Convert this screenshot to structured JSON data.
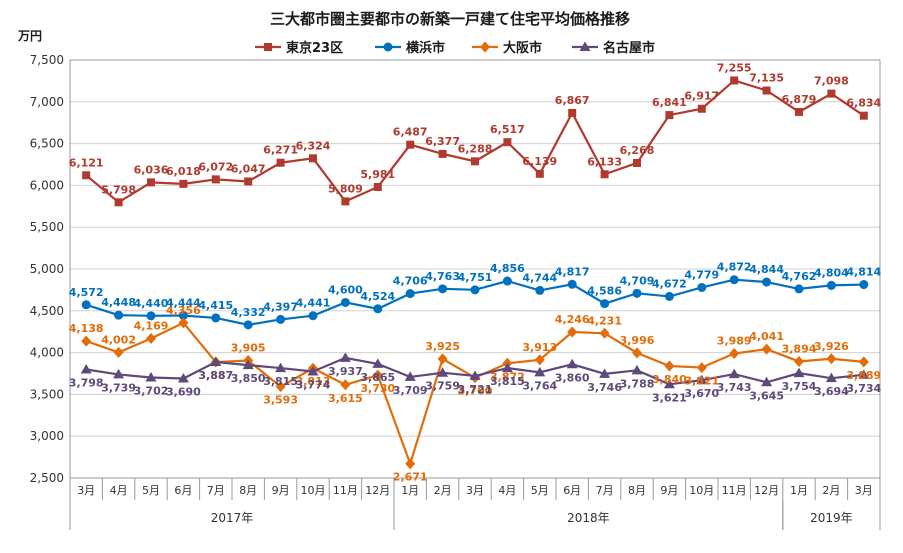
{
  "chart_data": {
    "type": "line",
    "title": "三大都市圏主要都市の新築一戸建て住宅平均価格推移",
    "ylabel": "万円",
    "ylim": [
      2500,
      7500
    ],
    "yticks": [
      "2,500",
      "3,000",
      "3,500",
      "4,000",
      "4,500",
      "5,000",
      "5,500",
      "6,000",
      "6,500",
      "7,000",
      "7,500"
    ],
    "ytick_values": [
      2500,
      3000,
      3500,
      4000,
      4500,
      5000,
      5500,
      6000,
      6500,
      7000,
      7500
    ],
    "categories": [
      "3月",
      "4月",
      "5月",
      "6月",
      "7月",
      "8月",
      "9月",
      "10月",
      "11月",
      "12月",
      "1月",
      "2月",
      "3月",
      "4月",
      "5月",
      "6月",
      "7月",
      "8月",
      "9月",
      "10月",
      "11月",
      "12月",
      "1月",
      "2月",
      "3月"
    ],
    "years": [
      {
        "label": "2017年",
        "start": 0,
        "end": 9
      },
      {
        "label": "2018年",
        "start": 10,
        "end": 21
      },
      {
        "label": "2019年",
        "start": 22,
        "end": 24
      }
    ],
    "grid": true,
    "legend_position": "top",
    "series": [
      {
        "name": "東京23区",
        "color": "#b03a2e",
        "marker": "square",
        "values": [
          6121,
          5798,
          6036,
          6018,
          6072,
          6047,
          6271,
          6324,
          5809,
          5981,
          6487,
          6377,
          6288,
          6517,
          6139,
          6867,
          6133,
          6268,
          6841,
          6917,
          7255,
          7135,
          6879,
          7098,
          6834
        ],
        "labels": [
          "6,121",
          "5,798",
          "6,036",
          "6,018",
          "6,072",
          "6,047",
          "6,271",
          "6,324",
          "5,809",
          "5,981",
          "6,487",
          "6,377",
          "6,288",
          "6,517",
          "6,139",
          "6,867",
          "6,133",
          "6,268",
          "6,841",
          "6,917",
          "7,255",
          "7,135",
          "6,879",
          "7,098",
          "6,834"
        ]
      },
      {
        "name": "横浜市",
        "color": "#0070c0",
        "marker": "circle",
        "values": [
          4572,
          4448,
          4440,
          4444,
          4415,
          4332,
          4397,
          4441,
          4600,
          4524,
          4706,
          4763,
          4751,
          4856,
          4744,
          4817,
          4586,
          4709,
          4672,
          4779,
          4872,
          4844,
          4762,
          4804,
          4814
        ],
        "labels": [
          "4,572",
          "4,448",
          "4,440",
          "4,444",
          "4,415",
          "4,332",
          "4,397",
          "4,441",
          "4,600",
          "4,524",
          "4,706",
          "4,763",
          "4,751",
          "4,856",
          "4,744",
          "4,817",
          "4,586",
          "4,709",
          "4,672",
          "4,779",
          "4,872",
          "4,844",
          "4,762",
          "4,804",
          "4,814"
        ]
      },
      {
        "name": "大阪市",
        "color": "#e36c09",
        "marker": "diamond",
        "values": [
          4138,
          4002,
          4169,
          4356,
          3887,
          3905,
          3593,
          3813,
          3615,
          3730,
          2671,
          3925,
          3700,
          3872,
          3913,
          4246,
          4231,
          3996,
          3840,
          3821,
          3989,
          4041,
          3894,
          3926,
          3889
        ],
        "labels": [
          "4,138",
          "4,002",
          "4,169",
          "4,356",
          "3,887",
          "3,905",
          "3,593",
          "3,813",
          "3,615",
          "3,730",
          "2,671",
          "3,925",
          "3,700",
          "3,872",
          "3,913",
          "4,246",
          "4,231",
          "3,996",
          "3,840",
          "3,821",
          "3,989",
          "4,041",
          "3,894",
          "3,926",
          "3,889"
        ]
      },
      {
        "name": "名古屋市",
        "color": "#5f497a",
        "marker": "triangle",
        "values": [
          3798,
          3739,
          3702,
          3690,
          3887,
          3850,
          3815,
          3774,
          3937,
          3865,
          3709,
          3759,
          3721,
          3815,
          3764,
          3860,
          3746,
          3788,
          3621,
          3670,
          3743,
          3645,
          3754,
          3694,
          3734
        ],
        "labels": [
          "3,798",
          "3,739",
          "3,702",
          "3,690",
          "3,887",
          "3,850",
          "3,815",
          "3,774",
          "3,937",
          "3,865",
          "3,709",
          "3,759",
          "3,721",
          "3,815",
          "3,764",
          "3,860",
          "3,746",
          "3,788",
          "3,621",
          "3,670",
          "3,743",
          "3,645",
          "3,754",
          "3,694",
          "3,734"
        ]
      }
    ]
  }
}
